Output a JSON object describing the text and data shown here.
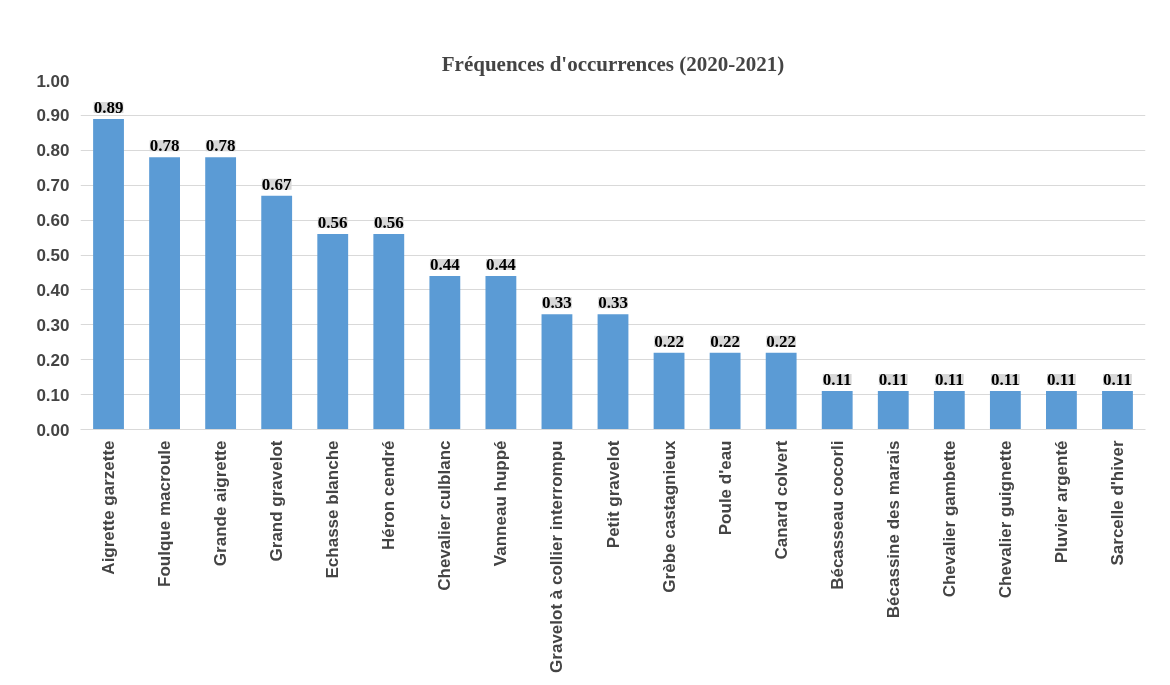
{
  "chart_data": {
    "type": "bar",
    "title": "Fréquences d'occurrences (2020-2021)",
    "categories": [
      "Aigrette garzette",
      "Foulque macroule",
      "Grande aigrette",
      "Grand gravelot",
      "Echasse blanche",
      "Héron cendré",
      "Chevalier culblanc",
      "Vanneau huppé",
      "Gravelot à collier interrompu",
      "Petit gravelot",
      "Grèbe castagnieux",
      "Poule d'eau",
      "Canard colvert",
      "Bécasseau cocorli",
      "Bécassine des marais",
      "Chevalier gambette",
      "Chevalier guignette",
      "Pluvier argenté",
      "Sarcelle d'hiver"
    ],
    "values": [
      0.89,
      0.78,
      0.78,
      0.67,
      0.56,
      0.56,
      0.44,
      0.44,
      0.33,
      0.33,
      0.22,
      0.22,
      0.22,
      0.11,
      0.11,
      0.11,
      0.11,
      0.11,
      0.11
    ],
    "color": "#5b9bd5",
    "ylim": [
      0,
      1.0
    ],
    "yticks": [
      {
        "value": 0,
        "label": "0.00"
      },
      {
        "value": 0.1,
        "label": "0.10"
      },
      {
        "value": 0.2,
        "label": "0.20"
      },
      {
        "value": 0.3,
        "label": "0.30"
      },
      {
        "value": 0.4,
        "label": "0.40"
      },
      {
        "value": 0.5,
        "label": "0.50"
      },
      {
        "value": 0.6,
        "label": "0.60"
      },
      {
        "value": 0.7,
        "label": "0.70"
      },
      {
        "value": 0.8,
        "label": "0.80"
      },
      {
        "value": 0.9,
        "label": "0.90"
      },
      {
        "value": 1.0,
        "label": "1.00"
      }
    ],
    "grid": "y",
    "data_labels": true
  }
}
